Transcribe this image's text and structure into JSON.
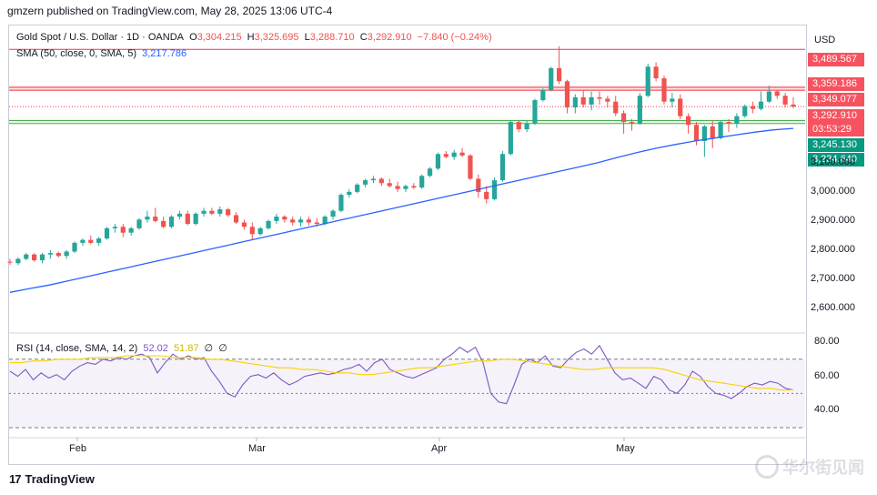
{
  "header": {
    "published": "gmzern published on TradingView.com, May 28, 2025 13:06 UTC-4"
  },
  "legend": {
    "symbol": "Gold Spot / U.S. Dollar · 1D · OANDA",
    "open_label": "O",
    "open": "3,304.215",
    "high_label": "H",
    "high": "3,325.695",
    "low_label": "L",
    "low": "3,288.710",
    "close_label": "C",
    "close": "3,292.910",
    "change": "−7.840 (−0.24%)",
    "sma_label": "SMA (50, close, 0, SMA, 5)",
    "sma_value": "3,217.786",
    "rsi_label": "RSI (14, close, SMA, 14, 2)",
    "rsi_value": "52.02",
    "rsi_ma_value": "51.87",
    "rsi_extra1": "∅",
    "rsi_extra2": "∅"
  },
  "price_axis": {
    "currency": "USD",
    "ticks": [
      "3,100.000",
      "3,000.000",
      "2,900.000",
      "2,800.000",
      "2,700.000",
      "2,600.000"
    ],
    "tags": [
      {
        "text": "3,489.567",
        "value": 3489.567,
        "color": "#f7525f"
      },
      {
        "text": "3,359.186",
        "value": 3359.186,
        "color": "#f7525f"
      },
      {
        "text": "3,349.077",
        "value": 3349.077,
        "color": "#f7525f"
      },
      {
        "text": "3,292.910",
        "value": 3292.91,
        "color": "#f7525f"
      },
      {
        "text": "03:53:29",
        "value": 3262.0,
        "color": "#f7525f"
      },
      {
        "text": "3,245.130",
        "value": 3245.13,
        "color": "#089981"
      },
      {
        "text": "3,234.640",
        "value": 3234.64,
        "color": "#089981"
      }
    ]
  },
  "rsi_axis": {
    "ticks": [
      "80.00",
      "60.00",
      "40.00"
    ]
  },
  "time_axis": {
    "labels": [
      "Feb",
      "Mar",
      "Apr",
      "May"
    ]
  },
  "footer": {
    "brand": "TradingView",
    "watermark": "华尔街见闻"
  },
  "colors": {
    "up": "#26a69a",
    "down": "#ef5350",
    "sma": "#2962ff",
    "rsi": "#7e57c2",
    "rsi_ma": "#f5d400",
    "resistance": "#f23645",
    "support": "#4caf50"
  },
  "chart_data": {
    "type": "candlestick",
    "title": "Gold Spot / U.S. Dollar · 1D · OANDA",
    "ylim": [
      2560,
      3560
    ],
    "hlines": [
      3489.567,
      3359.186,
      3349.077,
      3292.91,
      3245.13,
      3234.64
    ],
    "candles": [
      [
        2760,
        2770,
        2750,
        2758
      ],
      [
        2755,
        2775,
        2748,
        2770
      ],
      [
        2770,
        2790,
        2765,
        2785
      ],
      [
        2785,
        2790,
        2760,
        2765
      ],
      [
        2765,
        2790,
        2755,
        2785
      ],
      [
        2785,
        2800,
        2770,
        2790
      ],
      [
        2790,
        2795,
        2775,
        2780
      ],
      [
        2780,
        2800,
        2770,
        2795
      ],
      [
        2795,
        2830,
        2790,
        2825
      ],
      [
        2825,
        2840,
        2815,
        2835
      ],
      [
        2835,
        2850,
        2820,
        2825
      ],
      [
        2825,
        2845,
        2815,
        2840
      ],
      [
        2840,
        2880,
        2835,
        2875
      ],
      [
        2875,
        2890,
        2860,
        2880
      ],
      [
        2880,
        2890,
        2845,
        2860
      ],
      [
        2860,
        2880,
        2850,
        2875
      ],
      [
        2875,
        2910,
        2870,
        2905
      ],
      [
        2905,
        2935,
        2895,
        2915
      ],
      [
        2915,
        2945,
        2895,
        2900
      ],
      [
        2900,
        2915,
        2875,
        2880
      ],
      [
        2880,
        2920,
        2875,
        2915
      ],
      [
        2915,
        2935,
        2905,
        2925
      ],
      [
        2925,
        2935,
        2885,
        2890
      ],
      [
        2890,
        2930,
        2885,
        2925
      ],
      [
        2925,
        2945,
        2915,
        2935
      ],
      [
        2935,
        2945,
        2920,
        2925
      ],
      [
        2925,
        2950,
        2915,
        2940
      ],
      [
        2940,
        2945,
        2915,
        2920
      ],
      [
        2920,
        2930,
        2890,
        2895
      ],
      [
        2895,
        2905,
        2870,
        2880
      ],
      [
        2880,
        2895,
        2835,
        2855
      ],
      [
        2855,
        2880,
        2850,
        2875
      ],
      [
        2875,
        2905,
        2870,
        2900
      ],
      [
        2900,
        2925,
        2890,
        2915
      ],
      [
        2915,
        2920,
        2895,
        2905
      ],
      [
        2905,
        2915,
        2885,
        2895
      ],
      [
        2895,
        2915,
        2880,
        2905
      ],
      [
        2905,
        2915,
        2885,
        2895
      ],
      [
        2895,
        2910,
        2880,
        2890
      ],
      [
        2890,
        2920,
        2885,
        2915
      ],
      [
        2915,
        2940,
        2905,
        2935
      ],
      [
        2935,
        2995,
        2930,
        2990
      ],
      [
        2990,
        3010,
        2980,
        3000
      ],
      [
        3000,
        3030,
        2995,
        3025
      ],
      [
        3025,
        3045,
        3015,
        3040
      ],
      [
        3040,
        3055,
        3030,
        3045
      ],
      [
        3045,
        3050,
        3020,
        3030
      ],
      [
        3030,
        3045,
        3015,
        3020
      ],
      [
        3020,
        3035,
        3000,
        3010
      ],
      [
        3010,
        3025,
        3000,
        3020
      ],
      [
        3020,
        3030,
        3010,
        3015
      ],
      [
        3015,
        3060,
        3010,
        3055
      ],
      [
        3055,
        3085,
        3050,
        3080
      ],
      [
        3080,
        3135,
        3075,
        3130
      ],
      [
        3130,
        3140,
        3115,
        3120
      ],
      [
        3120,
        3145,
        3110,
        3135
      ],
      [
        3135,
        3150,
        3120,
        3125
      ],
      [
        3125,
        3130,
        3040,
        3045
      ],
      [
        3045,
        3060,
        2980,
        3000
      ],
      [
        3000,
        3020,
        2960,
        2975
      ],
      [
        2975,
        3050,
        2970,
        3040
      ],
      [
        3040,
        3140,
        3035,
        3130
      ],
      [
        3130,
        3245,
        3125,
        3240
      ],
      [
        3240,
        3245,
        3205,
        3215
      ],
      [
        3215,
        3245,
        3205,
        3235
      ],
      [
        3235,
        3320,
        3230,
        3315
      ],
      [
        3315,
        3355,
        3310,
        3350
      ],
      [
        3350,
        3430,
        3345,
        3425
      ],
      [
        3425,
        3500,
        3370,
        3380
      ],
      [
        3380,
        3385,
        3270,
        3290
      ],
      [
        3290,
        3335,
        3270,
        3325
      ],
      [
        3325,
        3350,
        3290,
        3300
      ],
      [
        3300,
        3345,
        3280,
        3325
      ],
      [
        3325,
        3345,
        3300,
        3320
      ],
      [
        3320,
        3330,
        3290,
        3310
      ],
      [
        3310,
        3330,
        3260,
        3270
      ],
      [
        3270,
        3280,
        3200,
        3240
      ],
      [
        3240,
        3250,
        3210,
        3235
      ],
      [
        3235,
        3340,
        3230,
        3330
      ],
      [
        3330,
        3440,
        3325,
        3430
      ],
      [
        3430,
        3445,
        3380,
        3390
      ],
      [
        3390,
        3400,
        3300,
        3310
      ],
      [
        3310,
        3340,
        3290,
        3320
      ],
      [
        3320,
        3335,
        3250,
        3260
      ],
      [
        3260,
        3270,
        3200,
        3230
      ],
      [
        3230,
        3240,
        3160,
        3175
      ],
      [
        3175,
        3230,
        3120,
        3225
      ],
      [
        3225,
        3245,
        3150,
        3185
      ],
      [
        3185,
        3245,
        3180,
        3240
      ],
      [
        3240,
        3250,
        3205,
        3235
      ],
      [
        3235,
        3270,
        3220,
        3260
      ],
      [
        3260,
        3300,
        3255,
        3295
      ],
      [
        3295,
        3310,
        3270,
        3285
      ],
      [
        3285,
        3345,
        3280,
        3310
      ],
      [
        3310,
        3365,
        3305,
        3345
      ],
      [
        3345,
        3350,
        3320,
        3330
      ],
      [
        3330,
        3340,
        3290,
        3300
      ],
      [
        3300,
        3325,
        3288,
        3293
      ]
    ],
    "sma": [
      2655,
      2668,
      2680,
      2695,
      2710,
      2725,
      2740,
      2755,
      2770,
      2785,
      2800,
      2815,
      2830,
      2845,
      2860,
      2875,
      2890,
      2905,
      2920,
      2935,
      2950,
      2965,
      2980,
      2995,
      3010,
      3025,
      3040,
      3055,
      3070,
      3085,
      3100,
      3118,
      3135,
      3150,
      3163,
      3175,
      3185,
      3195,
      3205,
      3213,
      3218
    ],
    "rsi": [
      63,
      60,
      64,
      58,
      62,
      59,
      61,
      58,
      63,
      66,
      68,
      67,
      70,
      69,
      71,
      70,
      72,
      73,
      71,
      62,
      68,
      73,
      70,
      72,
      70,
      71,
      63,
      57,
      50,
      48,
      55,
      60,
      61,
      59,
      62,
      58,
      55,
      57,
      60,
      61,
      62,
      61,
      62,
      64,
      65,
      67,
      63,
      68,
      70,
      64,
      62,
      60,
      59,
      61,
      63,
      65,
      70,
      73,
      77,
      74,
      77,
      68,
      50,
      45,
      44,
      55,
      67,
      70,
      68,
      72,
      66,
      65,
      70,
      74,
      76,
      73,
      78,
      70,
      62,
      58,
      59,
      56,
      53,
      60,
      58,
      52,
      50,
      55,
      63,
      60,
      54,
      50,
      49,
      47,
      50,
      54,
      56,
      55,
      57,
      56,
      53,
      52
    ],
    "rsi_ma": [
      68,
      68,
      69,
      69,
      70,
      70,
      70,
      71,
      71,
      71,
      72,
      72,
      72,
      72,
      71,
      71,
      71,
      70,
      70,
      69,
      68,
      67,
      66,
      65,
      65,
      64,
      64,
      63,
      62,
      62,
      61,
      61,
      62,
      63,
      64,
      65,
      65,
      66,
      67,
      68,
      69,
      69,
      70,
      70,
      69,
      68,
      67,
      66,
      65,
      64,
      64,
      65,
      65,
      65,
      65,
      65,
      64,
      62,
      60,
      58,
      57,
      56,
      55,
      54,
      53,
      53,
      52,
      52
    ]
  }
}
